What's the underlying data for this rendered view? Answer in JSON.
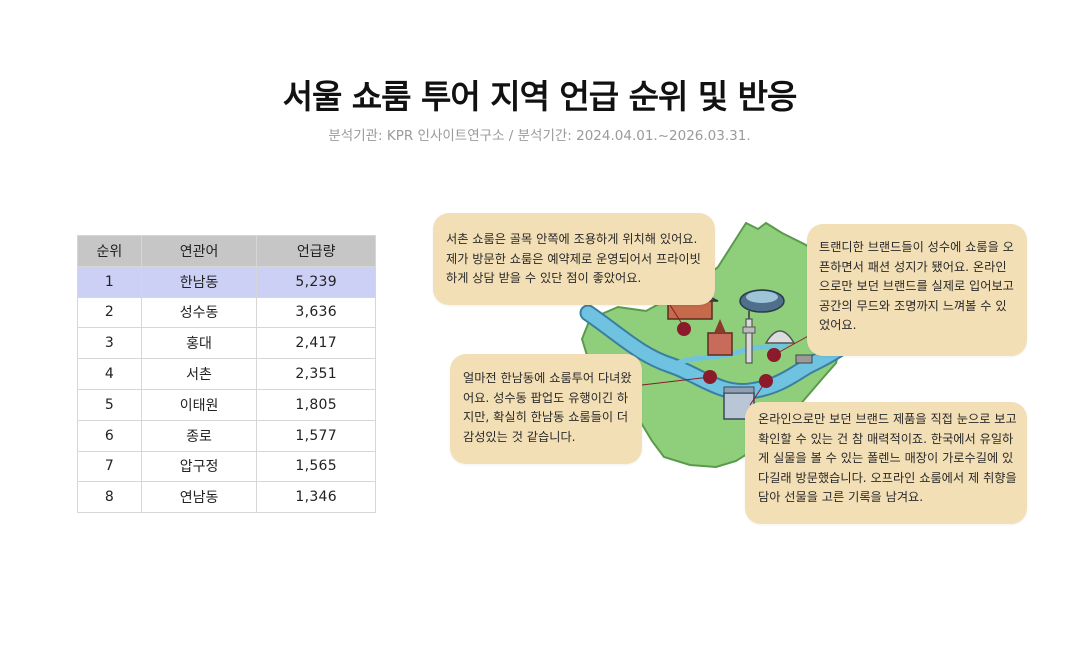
{
  "header": {
    "title": "서울 쇼룸 투어 지역 언급 순위 및 반응",
    "subtitle": "분석기관: KPR 인사이트연구소 / 분석기간: 2024.04.01.~2026.03.31."
  },
  "table": {
    "headers": [
      "순위",
      "연관어",
      "언급량"
    ],
    "rows": [
      [
        "1",
        "한남동",
        "5,239"
      ],
      [
        "2",
        "성수동",
        "3,636"
      ],
      [
        "3",
        "홍대",
        "2,417"
      ],
      [
        "4",
        "서촌",
        "2,351"
      ],
      [
        "5",
        "이태원",
        "1,805"
      ],
      [
        "6",
        "종로",
        "1,577"
      ],
      [
        "7",
        "압구정",
        "1,565"
      ],
      [
        "8",
        "연남동",
        "1,346"
      ]
    ]
  },
  "comments": [
    "서촌 쇼룸은 골목 안쪽에 조용하게 위치해 있어요. 제가 방문한 쇼룸은 예약제로 운영되어서 프라이빗하게 상담 받을 수 있단 점이 좋았어요.",
    "트랜디한 브랜드들이 성수에 쇼룸을 오픈하면서 패션 성지가 됐어요. 온라인으로만 보던 브랜드를 실제로 입어보고 공간의 무드와 조명까지 느껴볼 수 있었어요.",
    "얼마전 한남동에 쇼룸투어 다녀왔어요. 성수동 팝업도 유행이긴 하지만, 확실히 한남동 쇼룸들이 더 감성있는 것 같습니다.",
    "온라인으로만 보던 브랜드 제품을 직접 눈으로 보고 확인할 수 있는 건 참 매력적이죠. 한국에서 유일하게 실물을 볼 수 있는 폴렌느 매장이 가로수길에 있다길래 방문했습니다. 오프라인 쇼룸에서 제 취향을 담아 선물을 고른 기록을 남겨요."
  ],
  "map": {
    "icons": [
      "palace-icon",
      "stadium-icon",
      "cathedral-icon",
      "tower-icon",
      "museum-icon",
      "dome-icon",
      "bridge-icon"
    ],
    "colors": {
      "land": "#8fcf7c",
      "river": "#6fc3e0",
      "pin": "#8b1a2a",
      "bubble": "#f3dfb6"
    }
  }
}
